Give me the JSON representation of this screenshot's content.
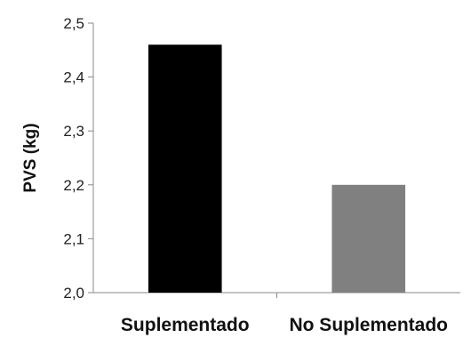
{
  "chart_data": {
    "type": "bar",
    "categories": [
      "Suplementado",
      "No Suplementado"
    ],
    "values": [
      2.46,
      2.2
    ],
    "ylabel": "PVS (kg)",
    "xlabel": "",
    "ylim": [
      2.0,
      2.5
    ],
    "yticks": [
      "2,0",
      "2,1",
      "2,2",
      "2,3",
      "2,4",
      "2,5"
    ],
    "grid": false,
    "legend": "none",
    "colors": [
      "#000000",
      "#808080"
    ]
  }
}
